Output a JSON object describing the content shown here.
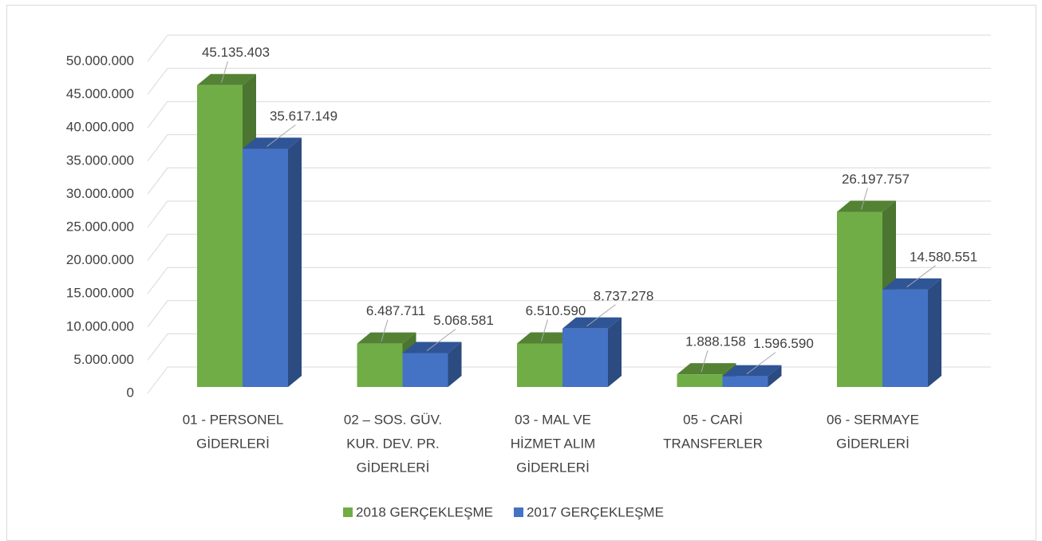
{
  "chart_data": {
    "type": "bar3d",
    "categories": [
      [
        "01 - PERSONEL",
        "GİDERLERİ"
      ],
      [
        "02 – SOS. GÜV.",
        "KUR. DEV. PR.",
        "GİDERLERİ"
      ],
      [
        "03 - MAL VE",
        "HİZMET ALIM",
        "GİDERLERİ"
      ],
      [
        "05 - CARİ",
        "TRANSFERLER"
      ],
      [
        "06 - SERMAYE",
        "GİDERLERİ"
      ]
    ],
    "series": [
      {
        "name": "2018 GERÇEKLEŞME",
        "color": "#70ad47",
        "values": [
          45135403,
          6487711,
          6510590,
          1888158,
          26197757
        ],
        "value_labels": [
          "45.135.403",
          "6.487.711",
          "6.510.590",
          "1.888.158",
          "26.197.757"
        ]
      },
      {
        "name": "2017 GERÇEKLEŞME",
        "color": "#4472c4",
        "values": [
          35617149,
          5068581,
          8737278,
          1596590,
          14580551
        ],
        "value_labels": [
          "35.617.149",
          "5.068.581",
          "8.737.278",
          "1.596.590",
          "14.580.551"
        ]
      }
    ],
    "ylim": [
      0,
      50000000
    ],
    "yticks": [
      0,
      {
        "value": 5000000,
        "label": "5.000.000"
      },
      {
        "value": 10000000,
        "label": "10.000.000"
      },
      {
        "value": 15000000,
        "label": "15.000.000"
      },
      {
        "value": 20000000,
        "label": "20.000.000"
      },
      {
        "value": 25000000,
        "label": "25.000.000"
      },
      {
        "value": 30000000,
        "label": "30.000.000"
      },
      {
        "value": 35000000,
        "label": "35.000.000"
      },
      {
        "value": 40000000,
        "label": "40.000.000"
      },
      {
        "value": 45000000,
        "label": "45.000.000"
      },
      {
        "value": 50000000,
        "label": "50.000.000"
      }
    ],
    "grid": true,
    "legend": "bottom"
  }
}
